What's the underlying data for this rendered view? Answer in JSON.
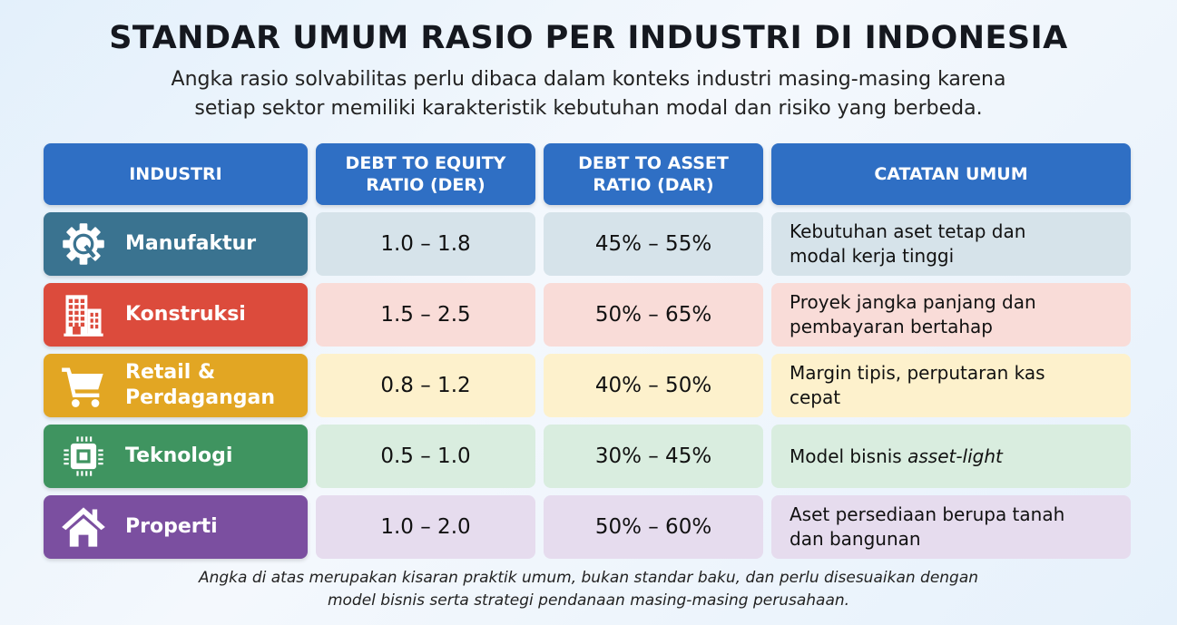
{
  "title": "STANDAR UMUM RASIO PER INDUSTRI DI INDONESIA",
  "subtitle": [
    "Angka rasio solvabilitas perlu dibaca dalam konteks industri masing-masing karena",
    "setiap sektor memiliki karakteristik kebutuhan modal dan risiko yang berbeda."
  ],
  "headers": {
    "industry": "INDUSTRI",
    "der": [
      "DEBT TO EQUITY",
      "RATIO (DER)"
    ],
    "dar": [
      "DEBT TO ASSET",
      "RATIO (DAR)"
    ],
    "note": "CATATAN UMUM"
  },
  "rows": [
    {
      "industry": [
        "Manufaktur"
      ],
      "icon": "gear-icon",
      "color": "#3a7390",
      "tint": "#d6e3ea",
      "der": "1.0 – 1.8",
      "dar": "45% – 55%",
      "note": [
        "Kebutuhan aset tetap dan",
        "modal kerja tinggi"
      ]
    },
    {
      "industry": [
        "Konstruksi"
      ],
      "icon": "building-icon",
      "color": "#dc4b3c",
      "tint": "#f9dcd8",
      "der": "1.5 – 2.5",
      "dar": "50% – 65%",
      "note": [
        "Proyek jangka panjang dan",
        "pembayaran bertahap"
      ]
    },
    {
      "industry": [
        "Retail &",
        "Perdagangan"
      ],
      "icon": "cart-icon",
      "color": "#e2a623",
      "tint": "#fdf1cc",
      "der": "0.8 – 1.2",
      "dar": "40% – 50%",
      "note": [
        "Margin tipis, perputaran kas",
        "cepat"
      ]
    },
    {
      "industry": [
        "Teknologi"
      ],
      "icon": "chip-icon",
      "color": "#3f9460",
      "tint": "#d9eddf",
      "der": "0.5 – 1.0",
      "dar": "30% – 45%",
      "note": [
        "Model bisnis ",
        "asset-light"
      ]
    },
    {
      "industry": [
        "Properti"
      ],
      "icon": "house-icon",
      "color": "#7b4fa0",
      "tint": "#e6dcee",
      "der": "1.0 – 2.0",
      "dar": "50% – 60%",
      "note": [
        "Aset persediaan berupa tanah",
        "dan bangunan"
      ]
    }
  ],
  "footer": [
    "Angka di atas merupakan kisaran praktik umum, bukan standar baku, dan perlu disesuaikan dengan",
    "model bisnis serta strategi pendanaan masing-masing perusahaan."
  ]
}
